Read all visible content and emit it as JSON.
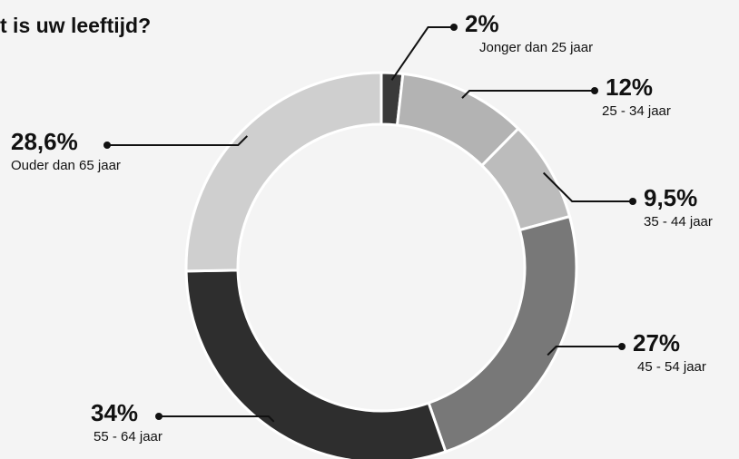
{
  "chart_data": {
    "type": "donut",
    "title": "t is uw leeftijd?",
    "categories": [
      "Jonger dan 25 jaar",
      "25 - 34 jaar",
      "35 - 44 jaar",
      "45 - 54 jaar",
      "55 - 64 jaar",
      "Ouder dan 65 jaar"
    ],
    "values": [
      2,
      12,
      9.5,
      27,
      34,
      28.6
    ],
    "value_labels": [
      "2%",
      "12%",
      "9,5%",
      "27%",
      "34%",
      "28,6%"
    ],
    "colors": [
      "#3a3a3a",
      "#b3b3b3",
      "#bcbcbc",
      "#787878",
      "#2e2e2e",
      "#cfcfcf"
    ]
  }
}
